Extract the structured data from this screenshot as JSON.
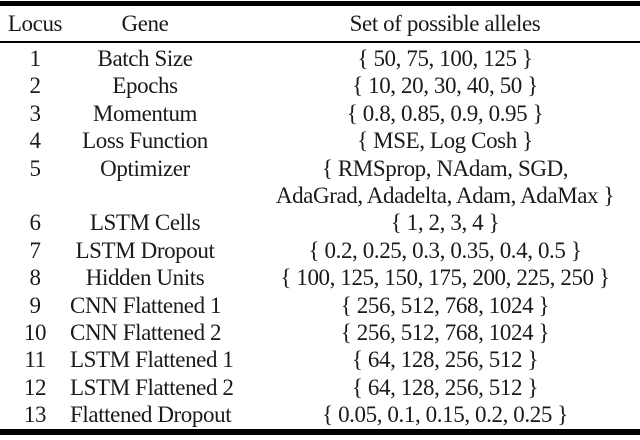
{
  "table": {
    "columns": [
      "Locus",
      "Gene",
      "Set of possible alleles"
    ],
    "rows": [
      {
        "locus": "1",
        "gene": "Batch Size",
        "alleles": [
          "{ 50, 75, 100, 125 }"
        ]
      },
      {
        "locus": "2",
        "gene": "Epochs",
        "alleles": [
          "{ 10, 20, 30, 40, 50 }"
        ]
      },
      {
        "locus": "3",
        "gene": "Momentum",
        "alleles": [
          "{ 0.8, 0.85, 0.9, 0.95 }"
        ]
      },
      {
        "locus": "4",
        "gene": "Loss Function",
        "alleles": [
          "{ MSE, Log Cosh }"
        ]
      },
      {
        "locus": "5",
        "gene": "Optimizer",
        "alleles": [
          "{ RMSprop, NAdam, SGD,",
          "AdaGrad, Adadelta, Adam, AdaMax }"
        ]
      },
      {
        "locus": "6",
        "gene": "LSTM Cells",
        "alleles": [
          "{ 1, 2, 3, 4 }"
        ]
      },
      {
        "locus": "7",
        "gene": "LSTM Dropout",
        "alleles": [
          "{ 0.2, 0.25, 0.3, 0.35, 0.4, 0.5 }"
        ]
      },
      {
        "locus": "8",
        "gene": "Hidden Units",
        "alleles": [
          "{ 100, 125, 150, 175, 200, 225, 250 }"
        ]
      },
      {
        "locus": "9",
        "gene": "CNN Flattened 1",
        "alleles": [
          "{ 256, 512, 768, 1024 }"
        ]
      },
      {
        "locus": "10",
        "gene": "CNN Flattened 2",
        "alleles": [
          "{ 256, 512, 768, 1024 }"
        ]
      },
      {
        "locus": "11",
        "gene": "LSTM Flattened 1",
        "alleles": [
          "{ 64, 128, 256, 512 }"
        ]
      },
      {
        "locus": "12",
        "gene": "LSTM Flattened 2",
        "alleles": [
          "{ 64, 128, 256, 512 }"
        ]
      },
      {
        "locus": "13",
        "gene": "Flattened Dropout",
        "alleles": [
          "{ 0.05, 0.1, 0.15, 0.2, 0.25 }"
        ]
      }
    ],
    "colors": {
      "rule": "#000000",
      "text": "#1a1a1a",
      "background": "#ffffff"
    }
  }
}
